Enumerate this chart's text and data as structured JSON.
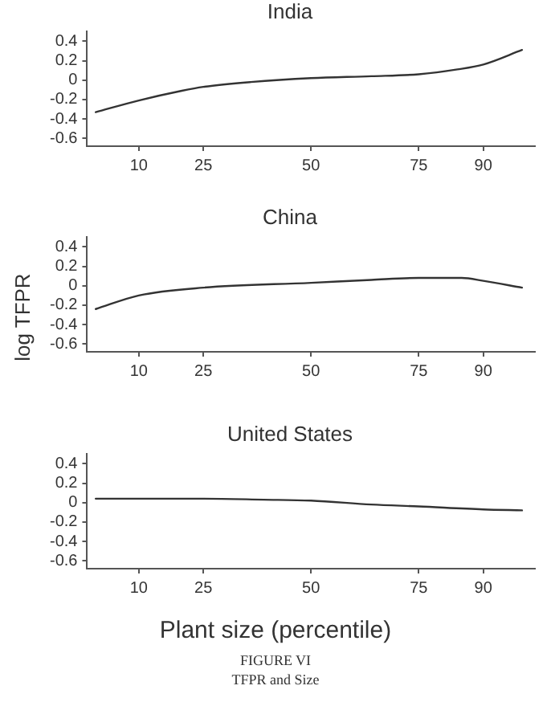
{
  "chart_data": [
    {
      "type": "line",
      "title": "India",
      "xlim": [
        -2,
        102
      ],
      "xticks": [
        10,
        25,
        50,
        75,
        90
      ],
      "ylim": [
        -0.68,
        0.5
      ],
      "yticks": [
        -0.6,
        -0.4,
        -0.2,
        0,
        0.2,
        0.4
      ],
      "grid": false,
      "legend": false,
      "marker": "none",
      "line_style": "solid",
      "series": [
        {
          "color": "#333333",
          "x": [
            0,
            10,
            20,
            25,
            36,
            50,
            64,
            75,
            84,
            90,
            99
          ],
          "values": [
            -0.33,
            -0.21,
            -0.11,
            -0.07,
            -0.02,
            0.02,
            0.04,
            0.06,
            0.11,
            0.16,
            0.31
          ]
        }
      ]
    },
    {
      "type": "line",
      "title": "China",
      "ylabel": "log TFPR",
      "xlim": [
        -2,
        102
      ],
      "xticks": [
        10,
        25,
        50,
        75,
        90
      ],
      "ylim": [
        -0.68,
        0.5
      ],
      "yticks": [
        -0.6,
        -0.4,
        -0.2,
        0,
        0.2,
        0.4
      ],
      "grid": false,
      "legend": false,
      "marker": "none",
      "line_style": "solid",
      "series": [
        {
          "color": "#333333",
          "x": [
            0,
            10,
            25,
            50,
            64,
            75,
            85,
            90,
            99
          ],
          "values": [
            -0.24,
            -0.1,
            -0.02,
            0.03,
            0.06,
            0.08,
            0.08,
            0.05,
            -0.02
          ]
        }
      ]
    },
    {
      "type": "line",
      "title": "United States",
      "xlabel": "Plant size (percentile)",
      "annotations": [
        "FIGURE VI",
        "TFPR and Size"
      ],
      "xlim": [
        -2,
        102
      ],
      "xticks": [
        10,
        25,
        50,
        75,
        90
      ],
      "ylim": [
        -0.68,
        0.5
      ],
      "yticks": [
        -0.6,
        -0.4,
        -0.2,
        0,
        0.2,
        0.4
      ],
      "grid": false,
      "legend": false,
      "marker": "none",
      "line_style": "solid",
      "series": [
        {
          "color": "#333333",
          "x": [
            0,
            25,
            39,
            50,
            64,
            75,
            90,
            99
          ],
          "values": [
            0.04,
            0.04,
            0.03,
            0.02,
            -0.02,
            -0.04,
            -0.07,
            -0.08
          ]
        }
      ]
    }
  ]
}
